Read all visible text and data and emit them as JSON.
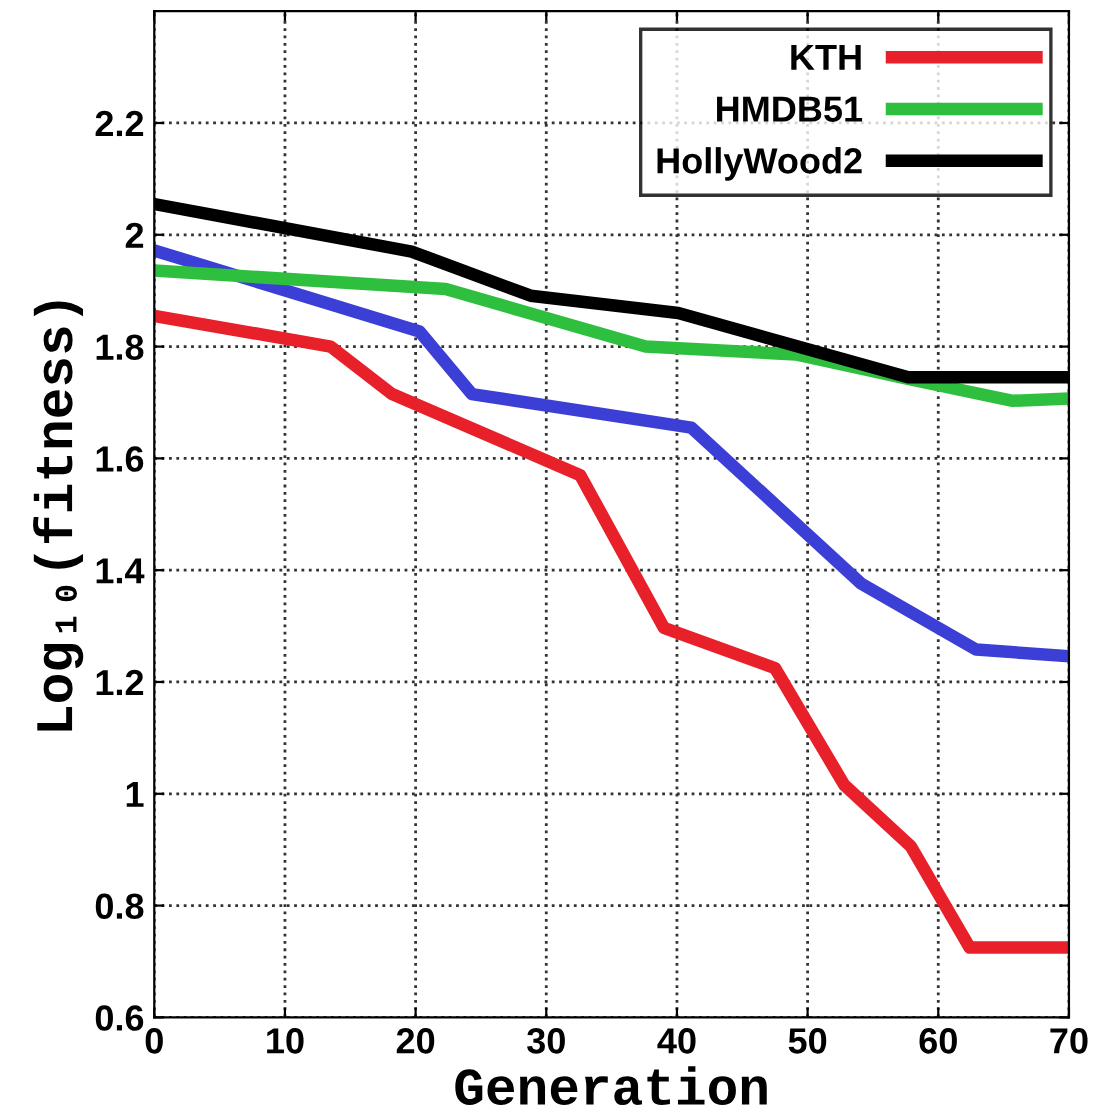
{
  "chart_data": {
    "type": "line",
    "xlabel": "Generation",
    "ylabel": "Log₁₀(fitness)",
    "xlim": [
      0,
      70
    ],
    "xticks": [
      0,
      10,
      20,
      30,
      40,
      50,
      60,
      70
    ],
    "ylim": [
      0.6,
      2.4
    ],
    "yticks": [
      0.6,
      0.8,
      1,
      1.2,
      1.4,
      1.6,
      1.8,
      2,
      2.2
    ],
    "grid": true,
    "legend": "top right",
    "line_style": "solid",
    "marker": "none",
    "series": [
      {
        "name": "KTH",
        "color": "#e8202a",
        "x": [
          0,
          13.5,
          18.2,
          32.6,
          39,
          47.5,
          52.8,
          57.9,
          62.4,
          70
        ],
        "values": [
          1.855,
          1.8,
          1.715,
          1.57,
          1.297,
          1.225,
          1.016,
          0.906,
          0.725,
          0.725
        ]
      },
      {
        "color": "#3b3fd6",
        "x": [
          0,
          20.3,
          24.3,
          41.1,
          54.1,
          62.9,
          70
        ],
        "values": [
          1.972,
          1.827,
          1.715,
          1.655,
          1.376,
          1.258,
          1.246
        ]
      },
      {
        "name": "HMDB51",
        "color": "#2fbf3f",
        "x": [
          0,
          22.3,
          37.6,
          49.1,
          57.7,
          65.7,
          70
        ],
        "values": [
          1.936,
          1.903,
          1.8,
          1.786,
          1.742,
          1.703,
          1.707
        ]
      },
      {
        "name": "HollyWood2",
        "color": "#000000",
        "x": [
          0,
          19.7,
          28.8,
          40.1,
          57.7,
          70
        ],
        "values": [
          2.055,
          1.97,
          1.891,
          1.86,
          1.745,
          1.745
        ]
      }
    ]
  }
}
